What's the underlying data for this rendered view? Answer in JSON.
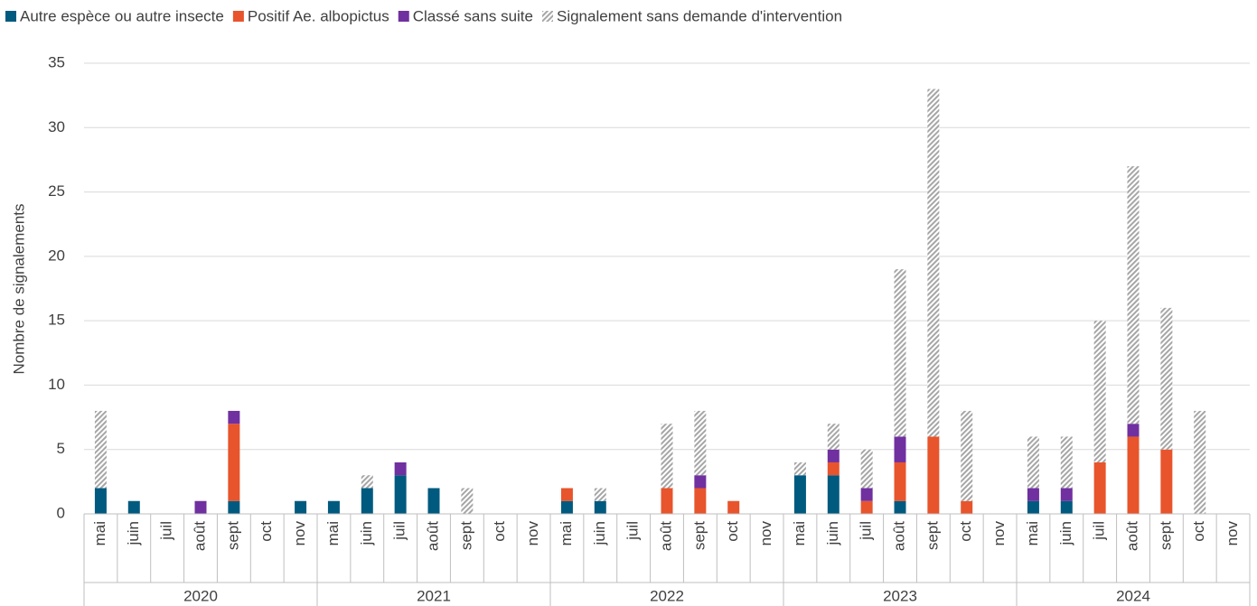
{
  "chart_data": {
    "type": "stacked-bar",
    "y_label": "Nombre de signalements",
    "groups": [
      {
        "name": "2020",
        "categories": [
          "mai",
          "juin",
          "juil",
          "août",
          "sept",
          "oct",
          "nov"
        ]
      },
      {
        "name": "2021",
        "categories": [
          "mai",
          "juin",
          "juil",
          "août",
          "sept",
          "oct",
          "nov"
        ]
      },
      {
        "name": "2022",
        "categories": [
          "mai",
          "juin",
          "juil",
          "août",
          "sept",
          "oct",
          "nov"
        ]
      },
      {
        "name": "2023",
        "categories": [
          "mai",
          "juin",
          "juil",
          "août",
          "sept",
          "oct",
          "nov"
        ]
      },
      {
        "name": "2024",
        "categories": [
          "mai",
          "juin",
          "juil",
          "août",
          "sept",
          "oct",
          "nov"
        ]
      }
    ],
    "series": [
      {
        "name": "Autre espèce ou autre insecte",
        "color": "#005a7f",
        "values": [
          2,
          1,
          0,
          0,
          1,
          0,
          1,
          1,
          2,
          3,
          2,
          0,
          0,
          0,
          1,
          1,
          0,
          0,
          0,
          0,
          0,
          3,
          3,
          0,
          1,
          0,
          0,
          0,
          1,
          1,
          0,
          0,
          0,
          0,
          0
        ]
      },
      {
        "name": "Positif Ae. albopictus",
        "color": "#e8542c",
        "values": [
          0,
          0,
          0,
          0,
          6,
          0,
          0,
          0,
          0,
          0,
          0,
          0,
          0,
          0,
          1,
          0,
          0,
          2,
          2,
          1,
          0,
          0,
          1,
          1,
          3,
          6,
          1,
          0,
          0,
          0,
          4,
          6,
          5,
          0,
          0
        ]
      },
      {
        "name": "Classé sans suite",
        "color": "#7030a0",
        "values": [
          0,
          0,
          0,
          1,
          1,
          0,
          0,
          0,
          0,
          1,
          0,
          0,
          0,
          0,
          0,
          0,
          0,
          0,
          1,
          0,
          0,
          0,
          1,
          1,
          2,
          0,
          0,
          0,
          1,
          1,
          0,
          1,
          0,
          0,
          0
        ]
      },
      {
        "name": "Signalement sans demande d'intervention",
        "color": "#a6a6a6",
        "pattern": "hatch",
        "values": [
          6,
          0,
          0,
          0,
          0,
          0,
          0,
          0,
          1,
          0,
          0,
          2,
          0,
          0,
          0,
          1,
          0,
          5,
          5,
          0,
          0,
          1,
          2,
          3,
          13,
          27,
          7,
          0,
          4,
          4,
          11,
          20,
          11,
          8,
          0
        ]
      }
    ],
    "ylim": [
      0,
      35
    ],
    "yticks": [
      0,
      5,
      10,
      15,
      20,
      25,
      30,
      35
    ],
    "grid": true,
    "legend": "top"
  }
}
